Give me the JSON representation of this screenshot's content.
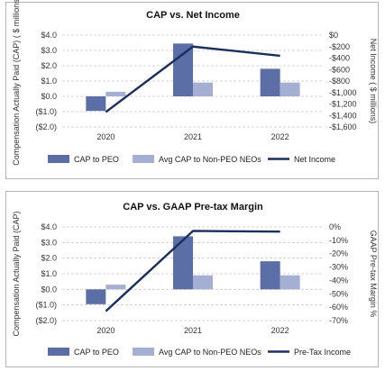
{
  "colors": {
    "cap_peo": "#5b6ea6",
    "cap_neo": "#a5afd3",
    "line": "#1b2f5e",
    "grid": "#c8c8c8"
  },
  "chart_data": [
    {
      "type": "bar",
      "title": "CAP vs. Net Income",
      "categories": [
        "2020",
        "2021",
        "2022"
      ],
      "ylabel": "Compensation Actually Paid (CAP) ( $ millions)",
      "y2label": "Net Income ( $ millions)",
      "ylim": [
        -2.0,
        4.0
      ],
      "y2lim": [
        -1600,
        0
      ],
      "yticks": [
        "$4.0",
        "$3.0",
        "$2.0",
        "$1.0",
        "$0.0",
        "($1.0)",
        "($2.0)"
      ],
      "y2ticks": [
        "$0",
        "-$200",
        "-$400",
        "-$600",
        "-$800",
        "-$1,000",
        "-$1,200",
        "-$1,400",
        "-$1,600"
      ],
      "series": [
        {
          "name": "CAP to PEO",
          "values": [
            -0.95,
            3.45,
            1.8
          ]
        },
        {
          "name": "Avg CAP to Non-PEO NEOs",
          "values": [
            0.3,
            0.9,
            0.9
          ]
        },
        {
          "name": "Net Income",
          "axis": "secondary",
          "values": [
            -1340,
            -200,
            -360
          ]
        }
      ],
      "grid": true,
      "legend_position": "bottom"
    },
    {
      "type": "bar",
      "title": "CAP vs. GAAP Pre-tax Margin",
      "categories": [
        "2020",
        "2021",
        "2022"
      ],
      "ylabel": "Compensation Actually Paid (CAP)",
      "y2label": "GAAP Pre-tax Margin %",
      "ylim": [
        -2.0,
        4.0
      ],
      "y2lim": [
        -70,
        0
      ],
      "yticks": [
        "$4.0",
        "$3.0",
        "$2.0",
        "$1.0",
        "$0.0",
        "($1.0)",
        "($2.0)"
      ],
      "y2ticks": [
        "0%",
        "-10%",
        "-20%",
        "-30%",
        "-40%",
        "-50%",
        "-60%",
        "-70%"
      ],
      "series": [
        {
          "name": "CAP to PEO",
          "values": [
            -0.95,
            3.4,
            1.8
          ]
        },
        {
          "name": "Avg CAP to Non-PEO NEOs",
          "values": [
            0.3,
            0.9,
            0.9
          ]
        },
        {
          "name": "Pre-Tax Income",
          "axis": "secondary",
          "values": [
            -63,
            -3,
            -3.5
          ]
        }
      ],
      "grid": true,
      "legend_position": "bottom"
    }
  ]
}
